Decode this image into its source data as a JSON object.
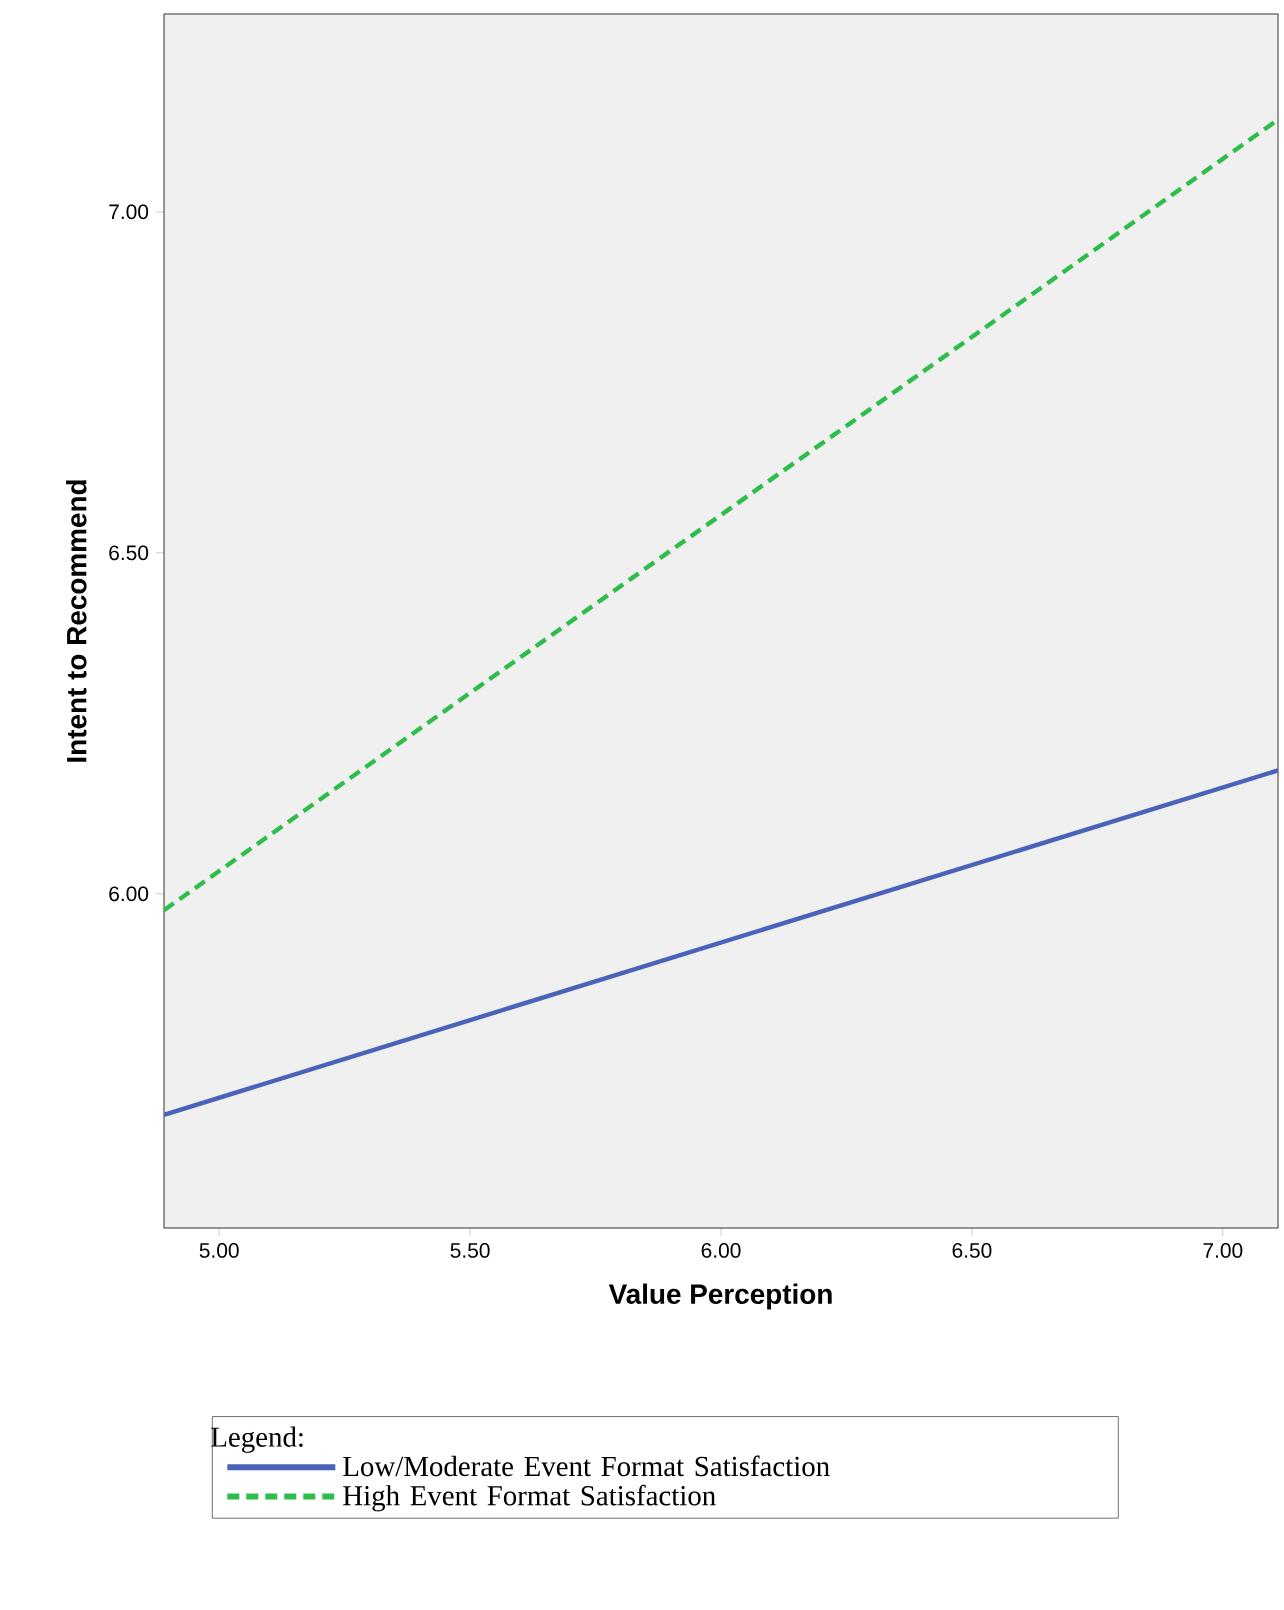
{
  "chart_data": {
    "type": "line",
    "xlabel": "Value Perception",
    "ylabel": "Intent to Recommend",
    "x": [
      4.89,
      7.11
    ],
    "series": [
      {
        "name": "Low/Moderate Event Format Satisfaction",
        "color": "#4a62b8",
        "values": [
          5.676,
          6.181
        ],
        "line_style": "solid"
      },
      {
        "name": "High Event Format Satisfaction",
        "color": "#2ebd4b",
        "values": [
          5.976,
          7.135
        ],
        "line_style": "dashed"
      }
    ],
    "xlim": [
      4.89,
      7.11
    ],
    "ylim": [
      5.51,
      7.29
    ],
    "xticks": [
      {
        "value": 5,
        "label": "5.00"
      },
      {
        "value": 5.5,
        "label": "5.50"
      },
      {
        "value": 6,
        "label": "6.00"
      },
      {
        "value": 6.5,
        "label": "6.50"
      },
      {
        "value": 7,
        "label": "7.00"
      }
    ],
    "yticks": [
      {
        "value": 6,
        "label": "6.00"
      },
      {
        "value": 6.5,
        "label": "6.50"
      },
      {
        "value": 7,
        "label": "7.00"
      }
    ],
    "legend": "bottom",
    "legend_title": "Legend:"
  }
}
